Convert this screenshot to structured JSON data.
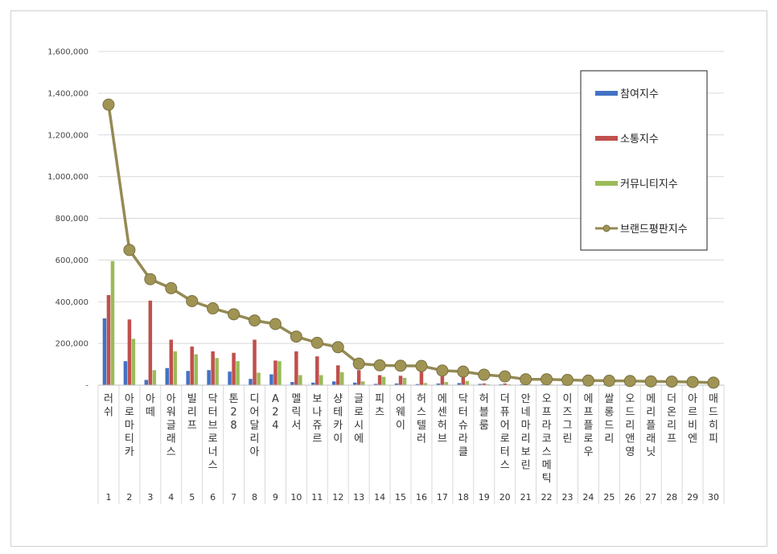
{
  "chart_data": {
    "type": "bar",
    "ylim": [
      0,
      1600000
    ],
    "yticks": [
      "-",
      "200,000",
      "400,000",
      "600,000",
      "800,000",
      "1,000,000",
      "1,200,000",
      "1,400,000",
      "1,600,000"
    ],
    "categories": [
      "러쉬",
      "아로마티카",
      "아떼",
      "아워글래스",
      "빌리프",
      "닥터브로너스",
      "톤28",
      "디어달리아",
      "A24",
      "멜릭서",
      "보나쥬르",
      "샹테카이",
      "글로시에",
      "피츠",
      "어웨이",
      "허스텔러",
      "에센허브",
      "닥터슈라클",
      "허블룸",
      "더퓨어로터스",
      "안네마리보린",
      "오프라코스메틱",
      "이즈그린",
      "에프플로우",
      "쌀롱드리",
      "오드리앤영",
      "메리플래닛",
      "더온리프",
      "아르비엔",
      "매드히피"
    ],
    "ranks": [
      "1",
      "2",
      "3",
      "4",
      "5",
      "6",
      "7",
      "8",
      "9",
      "10",
      "11",
      "12",
      "13",
      "14",
      "15",
      "16",
      "17",
      "18",
      "19",
      "20",
      "21",
      "22",
      "23",
      "24",
      "25",
      "26",
      "27",
      "28",
      "29",
      "30"
    ],
    "grid": true,
    "legend_position": "top-right",
    "series": [
      {
        "name": "참여지수",
        "color": "#4472c4",
        "values": [
          320000,
          115000,
          25000,
          82000,
          68000,
          72000,
          65000,
          30000,
          52000,
          15000,
          12000,
          18000,
          12000,
          6000,
          8000,
          5000,
          8000,
          10000,
          6000,
          4000,
          4000,
          4000,
          4000,
          3000,
          4000,
          3000,
          3000,
          3000,
          3000,
          3000
        ]
      },
      {
        "name": "소통지수",
        "color": "#c0504d",
        "values": [
          432000,
          315000,
          405000,
          218000,
          185000,
          162000,
          155000,
          218000,
          118000,
          162000,
          138000,
          95000,
          72000,
          48000,
          45000,
          72000,
          42000,
          38000,
          8000,
          8000,
          4000,
          4000,
          4000,
          3000,
          4000,
          3000,
          3000,
          3000,
          3000,
          3000
        ]
      },
      {
        "name": "커뮤니티지수",
        "color": "#9bbb59",
        "values": [
          595000,
          222000,
          72000,
          162000,
          148000,
          130000,
          115000,
          60000,
          115000,
          48000,
          48000,
          62000,
          18000,
          40000,
          35000,
          10000,
          15000,
          20000,
          4000,
          4000,
          3000,
          3000,
          3000,
          3000,
          3000,
          3000,
          3000,
          3000,
          3000,
          3000
        ]
      },
      {
        "name": "브랜드평판지수",
        "color": "#948a54",
        "type": "line",
        "values": [
          1345000,
          648000,
          508000,
          465000,
          403000,
          368000,
          340000,
          310000,
          293000,
          233000,
          203000,
          182000,
          103000,
          95000,
          93000,
          92000,
          70000,
          65000,
          50000,
          42000,
          28000,
          28000,
          25000,
          22000,
          21000,
          20000,
          18000,
          17000,
          15000,
          12000
        ]
      }
    ]
  }
}
